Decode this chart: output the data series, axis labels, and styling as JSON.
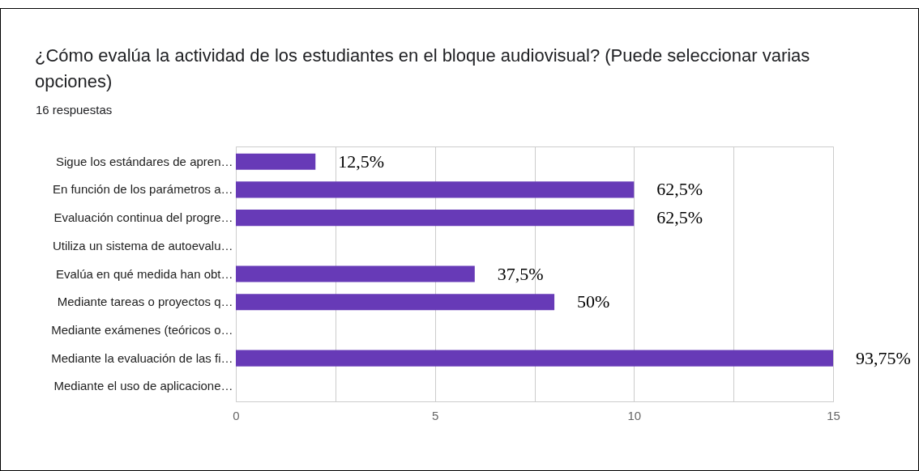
{
  "chart_data": {
    "type": "bar",
    "orientation": "horizontal",
    "title": "¿Cómo evalúa la actividad de los estudiantes en el bloque audiovisual? (Puede seleccionar varias opciones)",
    "subtitle": "16 respuestas",
    "categories": [
      "Sigue los estándares de apren…",
      "En función de los parámetros a…",
      "Evaluación continua del progre…",
      "Utiliza un sistema de autoevalu…",
      "Evalúa en qué medida han obt…",
      "Mediante tareas o proyectos q…",
      "Mediante exámenes (teóricos o…",
      "Mediante la evaluación de las fi…",
      "Mediante el uso de aplicacione…"
    ],
    "values": [
      2,
      10,
      10,
      0,
      6,
      8,
      0,
      15,
      0
    ],
    "annotations": [
      {
        "text": "12,5%",
        "x": 2,
        "y": "Sigue los estándares de apren…"
      },
      {
        "text": "62,5%",
        "x": 10,
        "y": "En función de los parámetros a…"
      },
      {
        "text": "62,5%",
        "x": 10,
        "y": "Evaluación continua del progre…"
      },
      {
        "text": "37,5%",
        "x": 6,
        "y": "Evalúa en qué medida han obt…"
      },
      {
        "text": "50%",
        "x": 8,
        "y": "Mediante tareas o proyectos q…"
      },
      {
        "text": "93,75%",
        "x": 15,
        "y": "Mediante la evaluación de las fi…"
      }
    ],
    "color": "#673ab7",
    "xlim": [
      0,
      15
    ],
    "xticks": [
      0,
      {
        "value": 2.5,
        "label": null
      },
      5,
      {
        "value": 7.5,
        "label": null
      },
      10,
      {
        "value": 12.5,
        "label": null
      },
      15
    ],
    "grid": "x"
  }
}
